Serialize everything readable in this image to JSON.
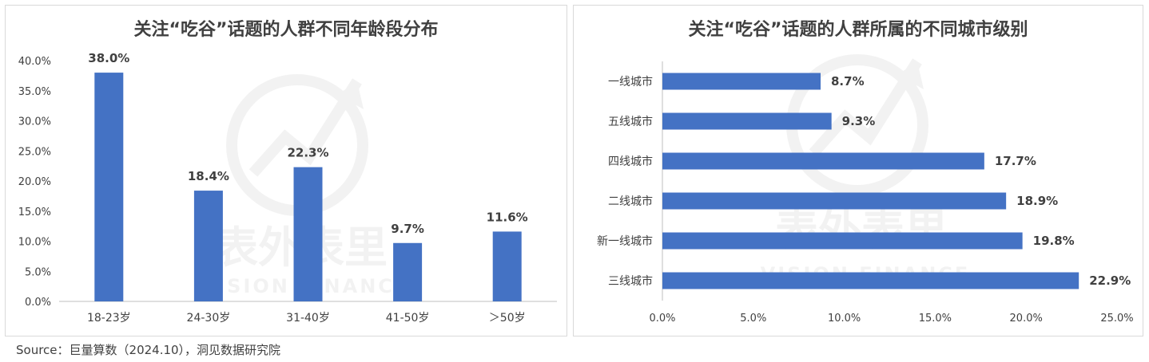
{
  "watermark": {
    "cn": "表外表里",
    "en": "VISION FINANCE"
  },
  "source": "Source：巨量算数（2024.10），洞见数据研究院",
  "colors": {
    "bar": "#4472C4",
    "axis": "#bfbfbf",
    "text": "#404040"
  },
  "chart_data": [
    {
      "type": "bar",
      "title": "关注“吃谷”话题的人群不同年龄段分布",
      "categories": [
        "18-23岁",
        "24-30岁",
        "31-40岁",
        "41-50岁",
        "＞50岁"
      ],
      "values": [
        38.0,
        18.4,
        22.3,
        9.7,
        11.6
      ],
      "data_labels": [
        "38.0%",
        "18.4%",
        "22.3%",
        "9.7%",
        "11.6%"
      ],
      "ylim": [
        0,
        40
      ],
      "yticks": [
        "0.0%",
        "5.0%",
        "10.0%",
        "15.0%",
        "20.0%",
        "25.0%",
        "30.0%",
        "35.0%",
        "40.0%"
      ],
      "grid": false,
      "legend": "none"
    },
    {
      "type": "bar",
      "orientation": "horizontal",
      "title": "关注“吃谷”话题的人群所属的不同城市级别",
      "categories": [
        "一线城市",
        "五线城市",
        "四线城市",
        "二线城市",
        "新一线城市",
        "三线城市"
      ],
      "values": [
        8.7,
        9.3,
        17.7,
        18.9,
        19.8,
        22.9
      ],
      "data_labels": [
        "8.7%",
        "9.3%",
        "17.7%",
        "18.9%",
        "19.8%",
        "22.9%"
      ],
      "xlim": [
        0,
        25
      ],
      "xticks": [
        "0.0%",
        "5.0%",
        "10.0%",
        "15.0%",
        "20.0%",
        "25.0%"
      ],
      "grid": false,
      "legend": "none"
    }
  ]
}
